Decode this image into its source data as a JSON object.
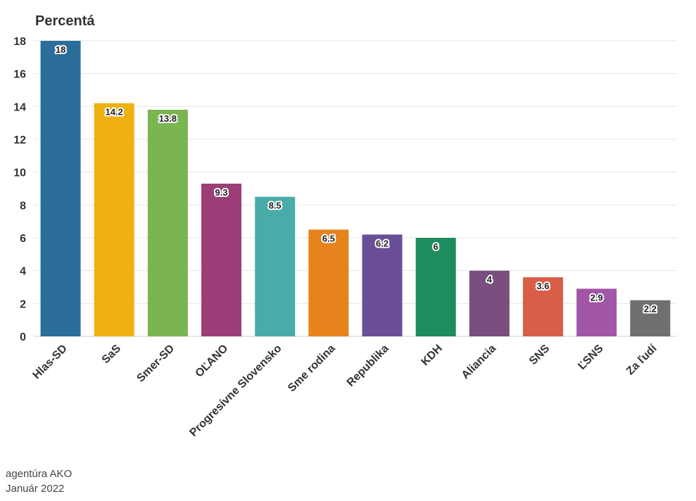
{
  "chart_data": {
    "type": "bar",
    "ylabel": "Percentá",
    "categories": [
      "Hlas-SD",
      "SaS",
      "Smer-SD",
      "OĽANO",
      "Progresívne Slovensko",
      "Sme rodina",
      "Republika",
      "KDH",
      "Aliancia",
      "SNS",
      "ĽSNS",
      "Za ľudí"
    ],
    "values": [
      18,
      14.2,
      13.8,
      9.3,
      8.5,
      6.5,
      6.2,
      6,
      4,
      3.6,
      2.9,
      2.2
    ],
    "labels": [
      "18",
      "14.2",
      "13.8",
      "9.3",
      "8.5",
      "6.5",
      "6.2",
      "6",
      "4",
      "3.6",
      "2.9",
      "2.2"
    ],
    "colors": [
      "#2b6e9b",
      "#eeb111",
      "#7bb551",
      "#9b3e77",
      "#48aca8",
      "#e6831c",
      "#6a4f98",
      "#1d8c5e",
      "#7a4e7e",
      "#d95e47",
      "#a156a6",
      "#6f6f6f"
    ],
    "yticks": [
      "0",
      "2",
      "4",
      "6",
      "8",
      "10",
      "12",
      "14",
      "16",
      "18"
    ],
    "ylim": [
      0,
      18
    ],
    "grid": true
  },
  "source": {
    "line1": "agentúra AKO",
    "line2": "Január 2022"
  }
}
